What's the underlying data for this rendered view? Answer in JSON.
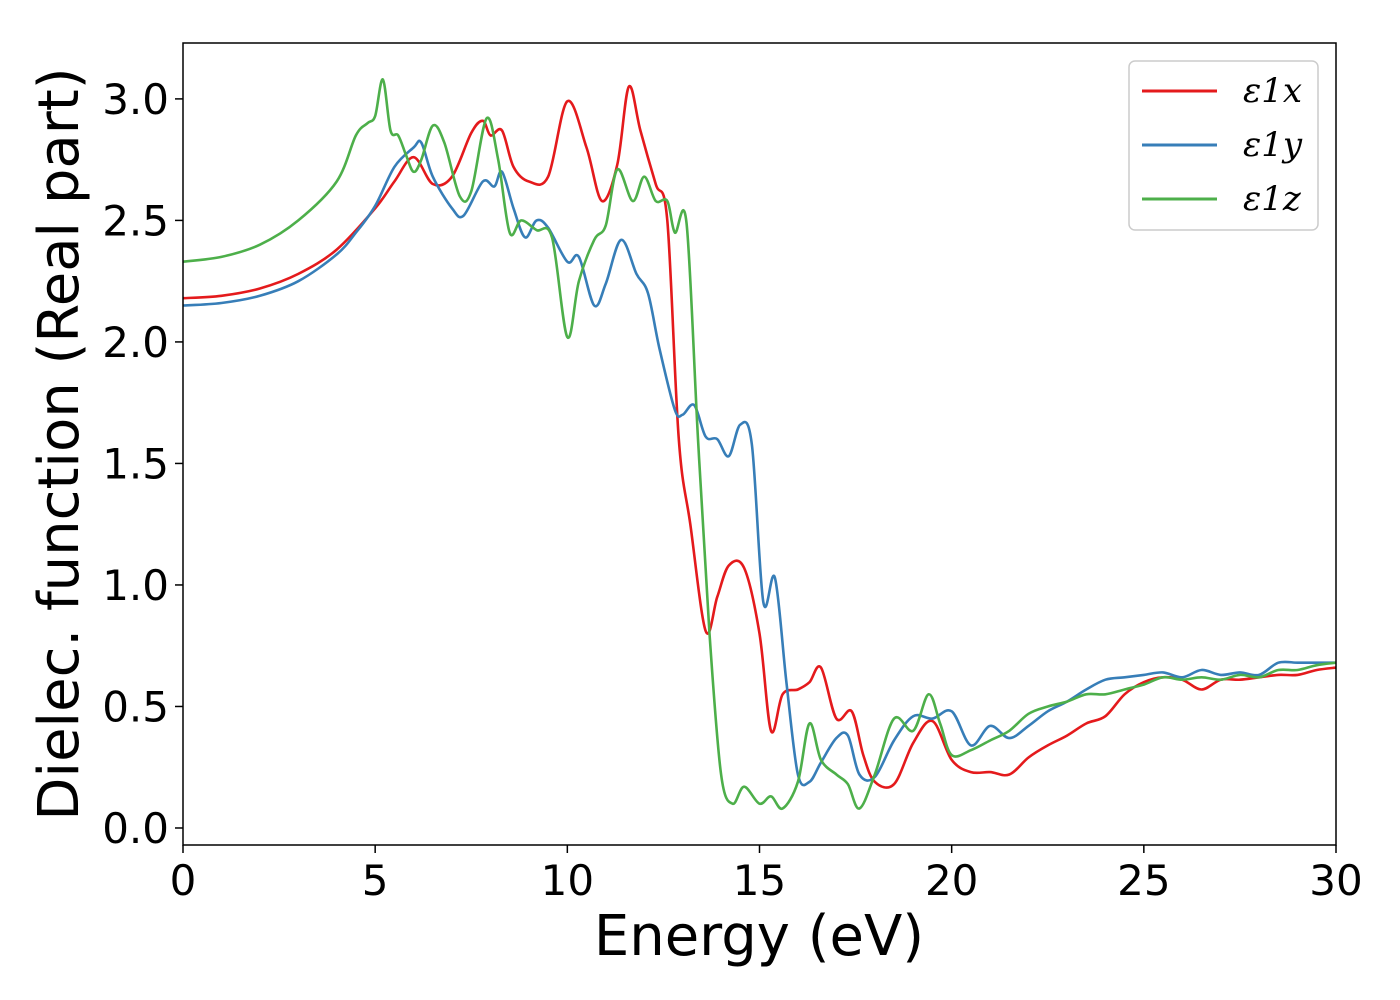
{
  "chart_data": {
    "type": "line",
    "title": "",
    "xlabel": "Energy (eV)",
    "ylabel": "Dielec. function (Real part)",
    "xlim": [
      0,
      30
    ],
    "ylim": [
      -0.07,
      3.23
    ],
    "xticks": [
      0,
      5,
      10,
      15,
      20,
      25,
      30
    ],
    "xtick_labels": [
      "0",
      "5",
      "10",
      "15",
      "20",
      "25",
      "30"
    ],
    "yticks": [
      0.0,
      0.5,
      1.0,
      1.5,
      2.0,
      2.5,
      3.0
    ],
    "ytick_labels": [
      "0.0",
      "0.5",
      "1.0",
      "1.5",
      "2.0",
      "2.5",
      "3.0"
    ],
    "grid": false,
    "legend_position": "top-right",
    "series": [
      {
        "name": "ε1x",
        "color": "#e41a1c",
        "points": [
          [
            0,
            2.18
          ],
          [
            1,
            2.19
          ],
          [
            2,
            2.22
          ],
          [
            3,
            2.28
          ],
          [
            4,
            2.38
          ],
          [
            5,
            2.55
          ],
          [
            5.5,
            2.66
          ],
          [
            6,
            2.76
          ],
          [
            6.5,
            2.65
          ],
          [
            7,
            2.68
          ],
          [
            7.5,
            2.86
          ],
          [
            7.8,
            2.91
          ],
          [
            8,
            2.85
          ],
          [
            8.3,
            2.87
          ],
          [
            8.6,
            2.72
          ],
          [
            9,
            2.66
          ],
          [
            9.5,
            2.68
          ],
          [
            10,
            2.99
          ],
          [
            10.5,
            2.8
          ],
          [
            10.9,
            2.58
          ],
          [
            11.3,
            2.73
          ],
          [
            11.6,
            3.05
          ],
          [
            11.9,
            2.87
          ],
          [
            12.3,
            2.65
          ],
          [
            12.6,
            2.5
          ],
          [
            12.9,
            1.6
          ],
          [
            13.2,
            1.25
          ],
          [
            13.6,
            0.81
          ],
          [
            13.9,
            0.95
          ],
          [
            14.2,
            1.08
          ],
          [
            14.6,
            1.07
          ],
          [
            15,
            0.8
          ],
          [
            15.3,
            0.4
          ],
          [
            15.6,
            0.55
          ],
          [
            16,
            0.57
          ],
          [
            16.3,
            0.6
          ],
          [
            16.6,
            0.66
          ],
          [
            17,
            0.45
          ],
          [
            17.4,
            0.48
          ],
          [
            17.7,
            0.3
          ],
          [
            18,
            0.19
          ],
          [
            18.5,
            0.18
          ],
          [
            19,
            0.35
          ],
          [
            19.5,
            0.44
          ],
          [
            20,
            0.28
          ],
          [
            20.5,
            0.23
          ],
          [
            21,
            0.23
          ],
          [
            21.5,
            0.22
          ],
          [
            22,
            0.29
          ],
          [
            22.5,
            0.34
          ],
          [
            23,
            0.38
          ],
          [
            23.5,
            0.43
          ],
          [
            24,
            0.46
          ],
          [
            24.5,
            0.55
          ],
          [
            25,
            0.6
          ],
          [
            25.5,
            0.62
          ],
          [
            26,
            0.61
          ],
          [
            26.5,
            0.57
          ],
          [
            27,
            0.61
          ],
          [
            27.5,
            0.61
          ],
          [
            28,
            0.62
          ],
          [
            28.5,
            0.63
          ],
          [
            29,
            0.63
          ],
          [
            29.5,
            0.65
          ],
          [
            30,
            0.66
          ]
        ]
      },
      {
        "name": "ε1y",
        "color": "#377eb8",
        "points": [
          [
            0,
            2.15
          ],
          [
            1,
            2.16
          ],
          [
            2,
            2.19
          ],
          [
            3,
            2.25
          ],
          [
            4,
            2.36
          ],
          [
            4.5,
            2.45
          ],
          [
            5,
            2.56
          ],
          [
            5.5,
            2.72
          ],
          [
            6,
            2.8
          ],
          [
            6.2,
            2.82
          ],
          [
            6.5,
            2.68
          ],
          [
            7,
            2.55
          ],
          [
            7.3,
            2.52
          ],
          [
            7.8,
            2.66
          ],
          [
            8.1,
            2.64
          ],
          [
            8.3,
            2.7
          ],
          [
            8.6,
            2.55
          ],
          [
            8.9,
            2.43
          ],
          [
            9.2,
            2.5
          ],
          [
            9.5,
            2.47
          ],
          [
            10,
            2.33
          ],
          [
            10.3,
            2.35
          ],
          [
            10.7,
            2.15
          ],
          [
            11,
            2.24
          ],
          [
            11.4,
            2.42
          ],
          [
            11.8,
            2.28
          ],
          [
            12.1,
            2.2
          ],
          [
            12.4,
            1.97
          ],
          [
            12.8,
            1.72
          ],
          [
            13,
            1.7
          ],
          [
            13.3,
            1.74
          ],
          [
            13.6,
            1.61
          ],
          [
            13.9,
            1.6
          ],
          [
            14.2,
            1.53
          ],
          [
            14.5,
            1.66
          ],
          [
            14.8,
            1.58
          ],
          [
            15.1,
            0.93
          ],
          [
            15.4,
            1.03
          ],
          [
            15.7,
            0.6
          ],
          [
            16,
            0.22
          ],
          [
            16.3,
            0.19
          ],
          [
            16.6,
            0.27
          ],
          [
            17,
            0.37
          ],
          [
            17.3,
            0.38
          ],
          [
            17.6,
            0.22
          ],
          [
            18,
            0.21
          ],
          [
            18.5,
            0.36
          ],
          [
            19,
            0.46
          ],
          [
            19.5,
            0.45
          ],
          [
            20,
            0.48
          ],
          [
            20.5,
            0.34
          ],
          [
            21,
            0.42
          ],
          [
            21.5,
            0.37
          ],
          [
            22,
            0.42
          ],
          [
            22.5,
            0.48
          ],
          [
            23,
            0.52
          ],
          [
            23.5,
            0.57
          ],
          [
            24,
            0.61
          ],
          [
            24.5,
            0.62
          ],
          [
            25,
            0.63
          ],
          [
            25.5,
            0.64
          ],
          [
            26,
            0.62
          ],
          [
            26.5,
            0.65
          ],
          [
            27,
            0.63
          ],
          [
            27.5,
            0.64
          ],
          [
            28,
            0.63
          ],
          [
            28.5,
            0.68
          ],
          [
            29,
            0.68
          ],
          [
            29.5,
            0.68
          ],
          [
            30,
            0.68
          ]
        ]
      },
      {
        "name": "ε1z",
        "color": "#4daf4a",
        "points": [
          [
            0,
            2.33
          ],
          [
            1,
            2.35
          ],
          [
            2,
            2.4
          ],
          [
            3,
            2.5
          ],
          [
            4,
            2.66
          ],
          [
            4.5,
            2.85
          ],
          [
            4.8,
            2.9
          ],
          [
            5,
            2.93
          ],
          [
            5.2,
            3.08
          ],
          [
            5.4,
            2.87
          ],
          [
            5.6,
            2.85
          ],
          [
            5.8,
            2.77
          ],
          [
            6,
            2.7
          ],
          [
            6.2,
            2.75
          ],
          [
            6.5,
            2.89
          ],
          [
            6.8,
            2.82
          ],
          [
            7.2,
            2.6
          ],
          [
            7.5,
            2.62
          ],
          [
            7.9,
            2.92
          ],
          [
            8.2,
            2.75
          ],
          [
            8.5,
            2.45
          ],
          [
            8.8,
            2.5
          ],
          [
            9.2,
            2.46
          ],
          [
            9.6,
            2.43
          ],
          [
            10,
            2.02
          ],
          [
            10.3,
            2.25
          ],
          [
            10.7,
            2.42
          ],
          [
            11,
            2.48
          ],
          [
            11.3,
            2.71
          ],
          [
            11.7,
            2.58
          ],
          [
            12,
            2.68
          ],
          [
            12.3,
            2.58
          ],
          [
            12.6,
            2.58
          ],
          [
            12.8,
            2.45
          ],
          [
            13.1,
            2.49
          ],
          [
            13.4,
            1.6
          ],
          [
            13.7,
            0.8
          ],
          [
            14,
            0.22
          ],
          [
            14.3,
            0.1
          ],
          [
            14.6,
            0.17
          ],
          [
            15,
            0.1
          ],
          [
            15.3,
            0.13
          ],
          [
            15.6,
            0.08
          ],
          [
            16,
            0.19
          ],
          [
            16.3,
            0.43
          ],
          [
            16.6,
            0.28
          ],
          [
            17,
            0.22
          ],
          [
            17.3,
            0.18
          ],
          [
            17.6,
            0.08
          ],
          [
            18,
            0.22
          ],
          [
            18.5,
            0.45
          ],
          [
            19,
            0.4
          ],
          [
            19.4,
            0.55
          ],
          [
            19.7,
            0.43
          ],
          [
            20,
            0.3
          ],
          [
            20.5,
            0.32
          ],
          [
            21,
            0.36
          ],
          [
            21.5,
            0.4
          ],
          [
            22,
            0.47
          ],
          [
            22.5,
            0.5
          ],
          [
            23,
            0.52
          ],
          [
            23.5,
            0.55
          ],
          [
            24,
            0.55
          ],
          [
            24.5,
            0.57
          ],
          [
            25,
            0.59
          ],
          [
            25.5,
            0.62
          ],
          [
            26,
            0.61
          ],
          [
            26.5,
            0.62
          ],
          [
            27,
            0.61
          ],
          [
            27.5,
            0.63
          ],
          [
            28,
            0.62
          ],
          [
            28.5,
            0.65
          ],
          [
            29,
            0.65
          ],
          [
            29.5,
            0.67
          ],
          [
            30,
            0.68
          ]
        ]
      }
    ]
  }
}
